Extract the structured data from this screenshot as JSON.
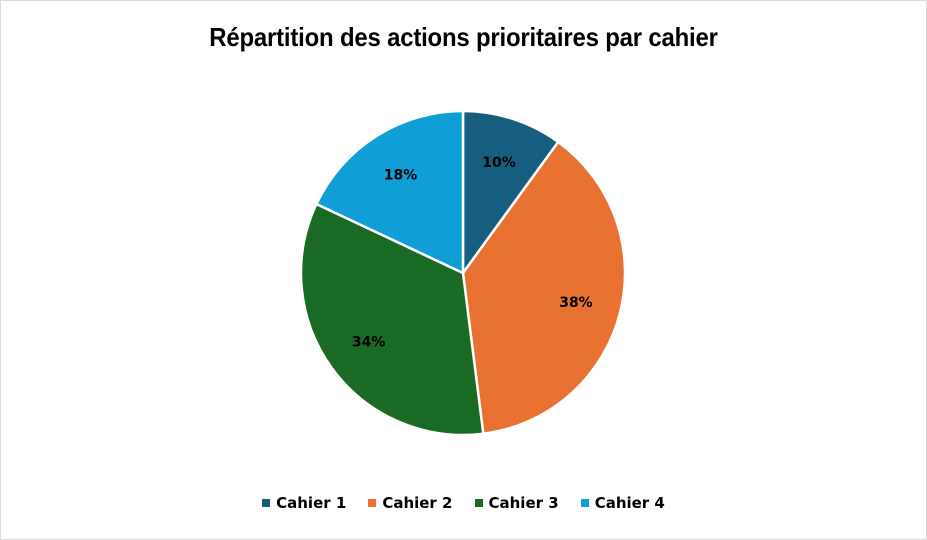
{
  "chart_data": {
    "type": "pie",
    "title": "Répartition des actions prioritaires par cahier",
    "categories": [
      "Cahier 1",
      "Cahier 2",
      "Cahier 3",
      "Cahier 4"
    ],
    "values": [
      10,
      38,
      34,
      18
    ],
    "labels": [
      "10%",
      "38%",
      "34%",
      "18%"
    ],
    "colors": [
      "#165e80",
      "#e97132",
      "#196b24",
      "#0f9ed5"
    ],
    "legend_position": "bottom",
    "start_angle_deg": 0,
    "direction": "clockwise"
  },
  "legend": {
    "items": [
      {
        "label": "Cahier 1",
        "color": "#165e80"
      },
      {
        "label": "Cahier 2",
        "color": "#e97132"
      },
      {
        "label": "Cahier 3",
        "color": "#196b24"
      },
      {
        "label": "Cahier 4",
        "color": "#0f9ed5"
      }
    ]
  }
}
